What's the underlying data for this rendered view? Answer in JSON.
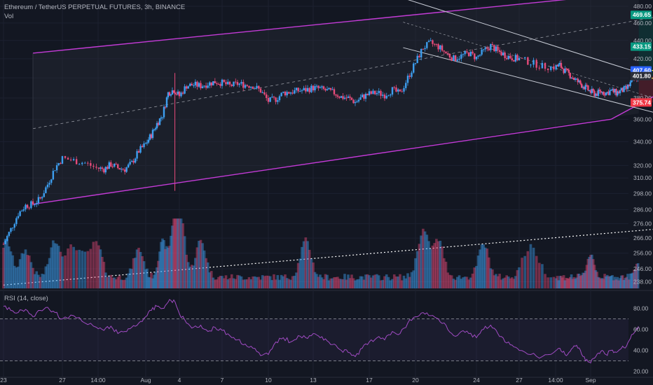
{
  "header": {
    "title": "Ethereum / TetherUS PERPETUAL FUTURES, 3h, BINANCE",
    "volume_label": "Vol",
    "rsi_label": "RSI (14, close)"
  },
  "colors": {
    "background": "#131722",
    "up": "#3d9ff0",
    "down": "#e84b7a",
    "channel": "#c33bd6",
    "wedge": "#c8ccd6",
    "rsi_line": "#a04bc3",
    "target_badge": "#089981",
    "stop_badge": "#f23645",
    "price_badge": "#2962ff",
    "entry_box": "#e6e65a"
  },
  "chart_data": {
    "type": "candlestick",
    "y_axis": {
      "scale": "log",
      "ticks": [
        "480.00",
        "460.00",
        "440.00",
        "420.00",
        "400.00",
        "380.00",
        "360.00",
        "340.00",
        "320.00",
        "310.00",
        "298.00",
        "286.00",
        "276.00",
        "266.00",
        "256.00",
        "246.00",
        "238.00"
      ],
      "range": [
        234,
        486
      ]
    },
    "x_axis": {
      "ticks": [
        "23",
        "27",
        "14:00",
        "Aug",
        "4",
        "7",
        "10",
        "13",
        "17",
        "20",
        "24",
        "27",
        "14:00",
        "Sep"
      ]
    },
    "price_badges": [
      {
        "label": "469.65",
        "value": 469.65,
        "role": "target-2"
      },
      {
        "label": "433.15",
        "value": 433.15,
        "role": "target-1"
      },
      {
        "label": "407.60",
        "value": 407.6,
        "role": "last-price"
      },
      {
        "label": "401.80",
        "value": 401.8,
        "role": "entry"
      },
      {
        "label": "375.74",
        "value": 375.74,
        "role": "stop"
      }
    ],
    "rsi_axis": {
      "ticks": [
        "80.00",
        "60.00",
        "40.00",
        "20.00"
      ],
      "range": [
        15,
        95
      ],
      "bands": [
        70,
        30
      ]
    },
    "close_path": [
      [
        23.0,
        262
      ],
      [
        23.5,
        272
      ],
      [
        24.0,
        283
      ],
      [
        24.5,
        289
      ],
      [
        25.0,
        290
      ],
      [
        25.5,
        294
      ],
      [
        26.0,
        305
      ],
      [
        26.5,
        318
      ],
      [
        27.0,
        326
      ],
      [
        27.5,
        324
      ],
      [
        28.0,
        322
      ],
      [
        28.5,
        318
      ],
      [
        29.0,
        317
      ],
      [
        29.5,
        321
      ],
      [
        30.0,
        318
      ],
      [
        30.5,
        317
      ],
      [
        31.0,
        322
      ],
      [
        31.5,
        332
      ],
      [
        32.0,
        338
      ],
      [
        32.5,
        346
      ],
      [
        33.0,
        356
      ],
      [
        33.5,
        364
      ],
      [
        34.0,
        385
      ],
      [
        34.5,
        388
      ],
      [
        35.0,
        382
      ],
      [
        35.5,
        392
      ],
      [
        36.0,
        393
      ],
      [
        36.5,
        392
      ],
      [
        37.0,
        394
      ],
      [
        37.5,
        396
      ],
      [
        38.0,
        395
      ],
      [
        38.5,
        392
      ],
      [
        39.0,
        394
      ],
      [
        39.5,
        393
      ],
      [
        40.0,
        392
      ],
      [
        40.5,
        387
      ],
      [
        41.0,
        377
      ],
      [
        41.5,
        379
      ],
      [
        42.0,
        385
      ],
      [
        42.5,
        386
      ],
      [
        43.0,
        387
      ],
      [
        43.5,
        388
      ],
      [
        44.0,
        390
      ],
      [
        44.5,
        389
      ],
      [
        45.0,
        387
      ],
      [
        45.5,
        385
      ],
      [
        46.0,
        381
      ],
      [
        46.5,
        380
      ],
      [
        47.0,
        376
      ],
      [
        47.5,
        381
      ],
      [
        48.0,
        384
      ],
      [
        48.5,
        385
      ],
      [
        49.0,
        383
      ],
      [
        49.5,
        388
      ],
      [
        50.0,
        384
      ],
      [
        50.5,
        400
      ],
      [
        51.0,
        416
      ],
      [
        51.5,
        432
      ],
      [
        52.0,
        437
      ],
      [
        52.5,
        433
      ],
      [
        53.0,
        426
      ],
      [
        53.5,
        420
      ],
      [
        54.0,
        423
      ],
      [
        54.5,
        426
      ],
      [
        55.0,
        421
      ],
      [
        55.5,
        428
      ],
      [
        56.0,
        434
      ],
      [
        56.5,
        428
      ],
      [
        57.0,
        424
      ],
      [
        57.5,
        421
      ],
      [
        58.0,
        420
      ],
      [
        58.5,
        416
      ],
      [
        59.0,
        412
      ],
      [
        59.5,
        411
      ],
      [
        60.0,
        413
      ],
      [
        60.5,
        407
      ],
      [
        61.0,
        403
      ],
      [
        61.5,
        398
      ],
      [
        62.0,
        394
      ],
      [
        62.5,
        390
      ],
      [
        63.0,
        386
      ],
      [
        63.5,
        384
      ],
      [
        64.0,
        386
      ],
      [
        64.5,
        385
      ],
      [
        65.0,
        387
      ],
      [
        65.5,
        385
      ],
      [
        66.0,
        387
      ],
      [
        66.5,
        389
      ],
      [
        67.0,
        396
      ],
      [
        67.5,
        401
      ],
      [
        67.7,
        404
      ]
    ],
    "volume": {
      "relative_peaks": [
        {
          "x": 23.2,
          "v": 0.55
        },
        {
          "x": 24.5,
          "v": 0.4
        },
        {
          "x": 26.5,
          "v": 0.55
        },
        {
          "x": 27.5,
          "v": 0.45
        },
        {
          "x": 28.5,
          "v": 0.5
        },
        {
          "x": 31.5,
          "v": 0.42
        },
        {
          "x": 33.5,
          "v": 0.52
        },
        {
          "x": 34.5,
          "v": 0.6
        },
        {
          "x": 35.0,
          "v": 1.0
        },
        {
          "x": 36.5,
          "v": 0.55
        },
        {
          "x": 43.5,
          "v": 0.55
        },
        {
          "x": 51.5,
          "v": 0.7
        },
        {
          "x": 52.5,
          "v": 0.55
        },
        {
          "x": 55.5,
          "v": 0.5
        },
        {
          "x": 58.5,
          "v": 0.45
        },
        {
          "x": 63.0,
          "v": 0.35
        },
        {
          "x": 67.7,
          "v": 0.25
        }
      ]
    },
    "rsi_path": [
      [
        23.0,
        82
      ],
      [
        23.5,
        78
      ],
      [
        24.0,
        76
      ],
      [
        24.5,
        79
      ],
      [
        25.0,
        72
      ],
      [
        25.5,
        78
      ],
      [
        26.0,
        81
      ],
      [
        26.5,
        76
      ],
      [
        27.0,
        70
      ],
      [
        27.5,
        73
      ],
      [
        28.0,
        66
      ],
      [
        28.5,
        62
      ],
      [
        29.0,
        59
      ],
      [
        29.5,
        63
      ],
      [
        30.0,
        56
      ],
      [
        30.5,
        58
      ],
      [
        31.0,
        62
      ],
      [
        31.5,
        66
      ],
      [
        32.0,
        72
      ],
      [
        32.5,
        78
      ],
      [
        33.0,
        82
      ],
      [
        33.5,
        80
      ],
      [
        34.0,
        86
      ],
      [
        34.5,
        88
      ],
      [
        35.0,
        75
      ],
      [
        35.5,
        66
      ],
      [
        36.0,
        62
      ],
      [
        36.5,
        64
      ],
      [
        37.0,
        58
      ],
      [
        37.5,
        62
      ],
      [
        38.0,
        59
      ],
      [
        38.5,
        54
      ],
      [
        39.0,
        50
      ],
      [
        39.5,
        46
      ],
      [
        40.0,
        42
      ],
      [
        40.5,
        35
      ],
      [
        41.0,
        36
      ],
      [
        41.5,
        48
      ],
      [
        42.0,
        52
      ],
      [
        42.5,
        48
      ],
      [
        43.0,
        54
      ],
      [
        43.5,
        52
      ],
      [
        44.0,
        56
      ],
      [
        44.5,
        52
      ],
      [
        45.0,
        49
      ],
      [
        45.5,
        46
      ],
      [
        46.0,
        40
      ],
      [
        46.5,
        38
      ],
      [
        47.0,
        34
      ],
      [
        47.5,
        42
      ],
      [
        48.0,
        48
      ],
      [
        48.5,
        52
      ],
      [
        49.0,
        50
      ],
      [
        49.5,
        58
      ],
      [
        50.0,
        56
      ],
      [
        50.5,
        66
      ],
      [
        51.0,
        72
      ],
      [
        51.5,
        76
      ],
      [
        52.0,
        73
      ],
      [
        52.5,
        70
      ],
      [
        53.0,
        64
      ],
      [
        53.5,
        54
      ],
      [
        54.0,
        58
      ],
      [
        54.5,
        56
      ],
      [
        55.0,
        52
      ],
      [
        55.5,
        60
      ],
      [
        56.0,
        64
      ],
      [
        56.5,
        56
      ],
      [
        57.0,
        48
      ],
      [
        57.5,
        45
      ],
      [
        58.0,
        40
      ],
      [
        58.5,
        36
      ],
      [
        59.0,
        34
      ],
      [
        59.5,
        38
      ],
      [
        60.0,
        42
      ],
      [
        60.5,
        36
      ],
      [
        61.0,
        39
      ],
      [
        61.5,
        44
      ],
      [
        62.0,
        40
      ],
      [
        62.5,
        30
      ],
      [
        63.0,
        28
      ],
      [
        63.5,
        34
      ],
      [
        64.0,
        39
      ],
      [
        64.5,
        36
      ],
      [
        65.0,
        40
      ],
      [
        65.5,
        38
      ],
      [
        66.0,
        42
      ],
      [
        66.5,
        44
      ],
      [
        67.0,
        55
      ],
      [
        67.5,
        61
      ],
      [
        67.7,
        62
      ]
    ],
    "channel": {
      "upper": [
        [
          25,
          426
        ],
        [
          65,
          494
        ]
      ],
      "lower": [
        [
          25,
          290
        ],
        [
          65,
          360
        ]
      ]
    },
    "wedge": {
      "upper": [
        [
          50.2,
          490
        ],
        [
          67.8,
          405
        ]
      ],
      "lower": [
        [
          50.2,
          432
        ],
        [
          69.7,
          365
        ]
      ]
    },
    "dotted_trend": [
      [
        23,
        236
      ],
      [
        74,
        275
      ]
    ],
    "trade": {
      "entry": 401.8,
      "stop": 375.74,
      "target1": 433.15,
      "target2": 469.65,
      "x_start": 67.7,
      "x_end": 73.7
    }
  }
}
